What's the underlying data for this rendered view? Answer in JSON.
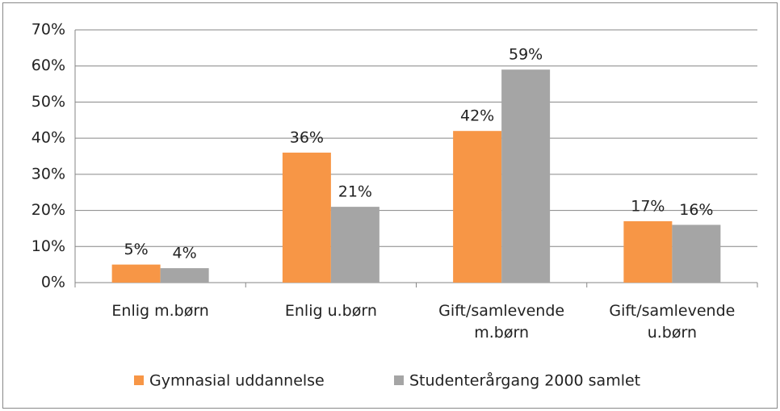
{
  "chart_data": {
    "type": "bar",
    "categories": [
      "Enlig m.børn",
      "Enlig u.børn",
      "Gift/samlevende\nm.børn",
      "Gift/samlevende\nu.børn"
    ],
    "series": [
      {
        "name": "Gymnasial uddannelse",
        "color": "#f79646",
        "values": [
          5,
          36,
          42,
          17
        ],
        "value_labels": [
          "5%",
          "36%",
          "42%",
          "17%"
        ]
      },
      {
        "name": "Studenterårgang 2000 samlet",
        "color": "#a5a5a5",
        "values": [
          4,
          21,
          59,
          16
        ],
        "value_labels": [
          "4%",
          "21%",
          "59%",
          "16%"
        ]
      }
    ],
    "ylim": [
      0,
      70
    ],
    "yticks": [
      {
        "value": 0,
        "label": "0%"
      },
      {
        "value": 10,
        "label": "10%"
      },
      {
        "value": 20,
        "label": "20%"
      },
      {
        "value": 30,
        "label": "30%"
      },
      {
        "value": 40,
        "label": "40%"
      },
      {
        "value": 50,
        "label": "50%"
      },
      {
        "value": 60,
        "label": "60%"
      },
      {
        "value": 70,
        "label": "70%"
      }
    ],
    "grid": true,
    "legend": "bottom"
  }
}
